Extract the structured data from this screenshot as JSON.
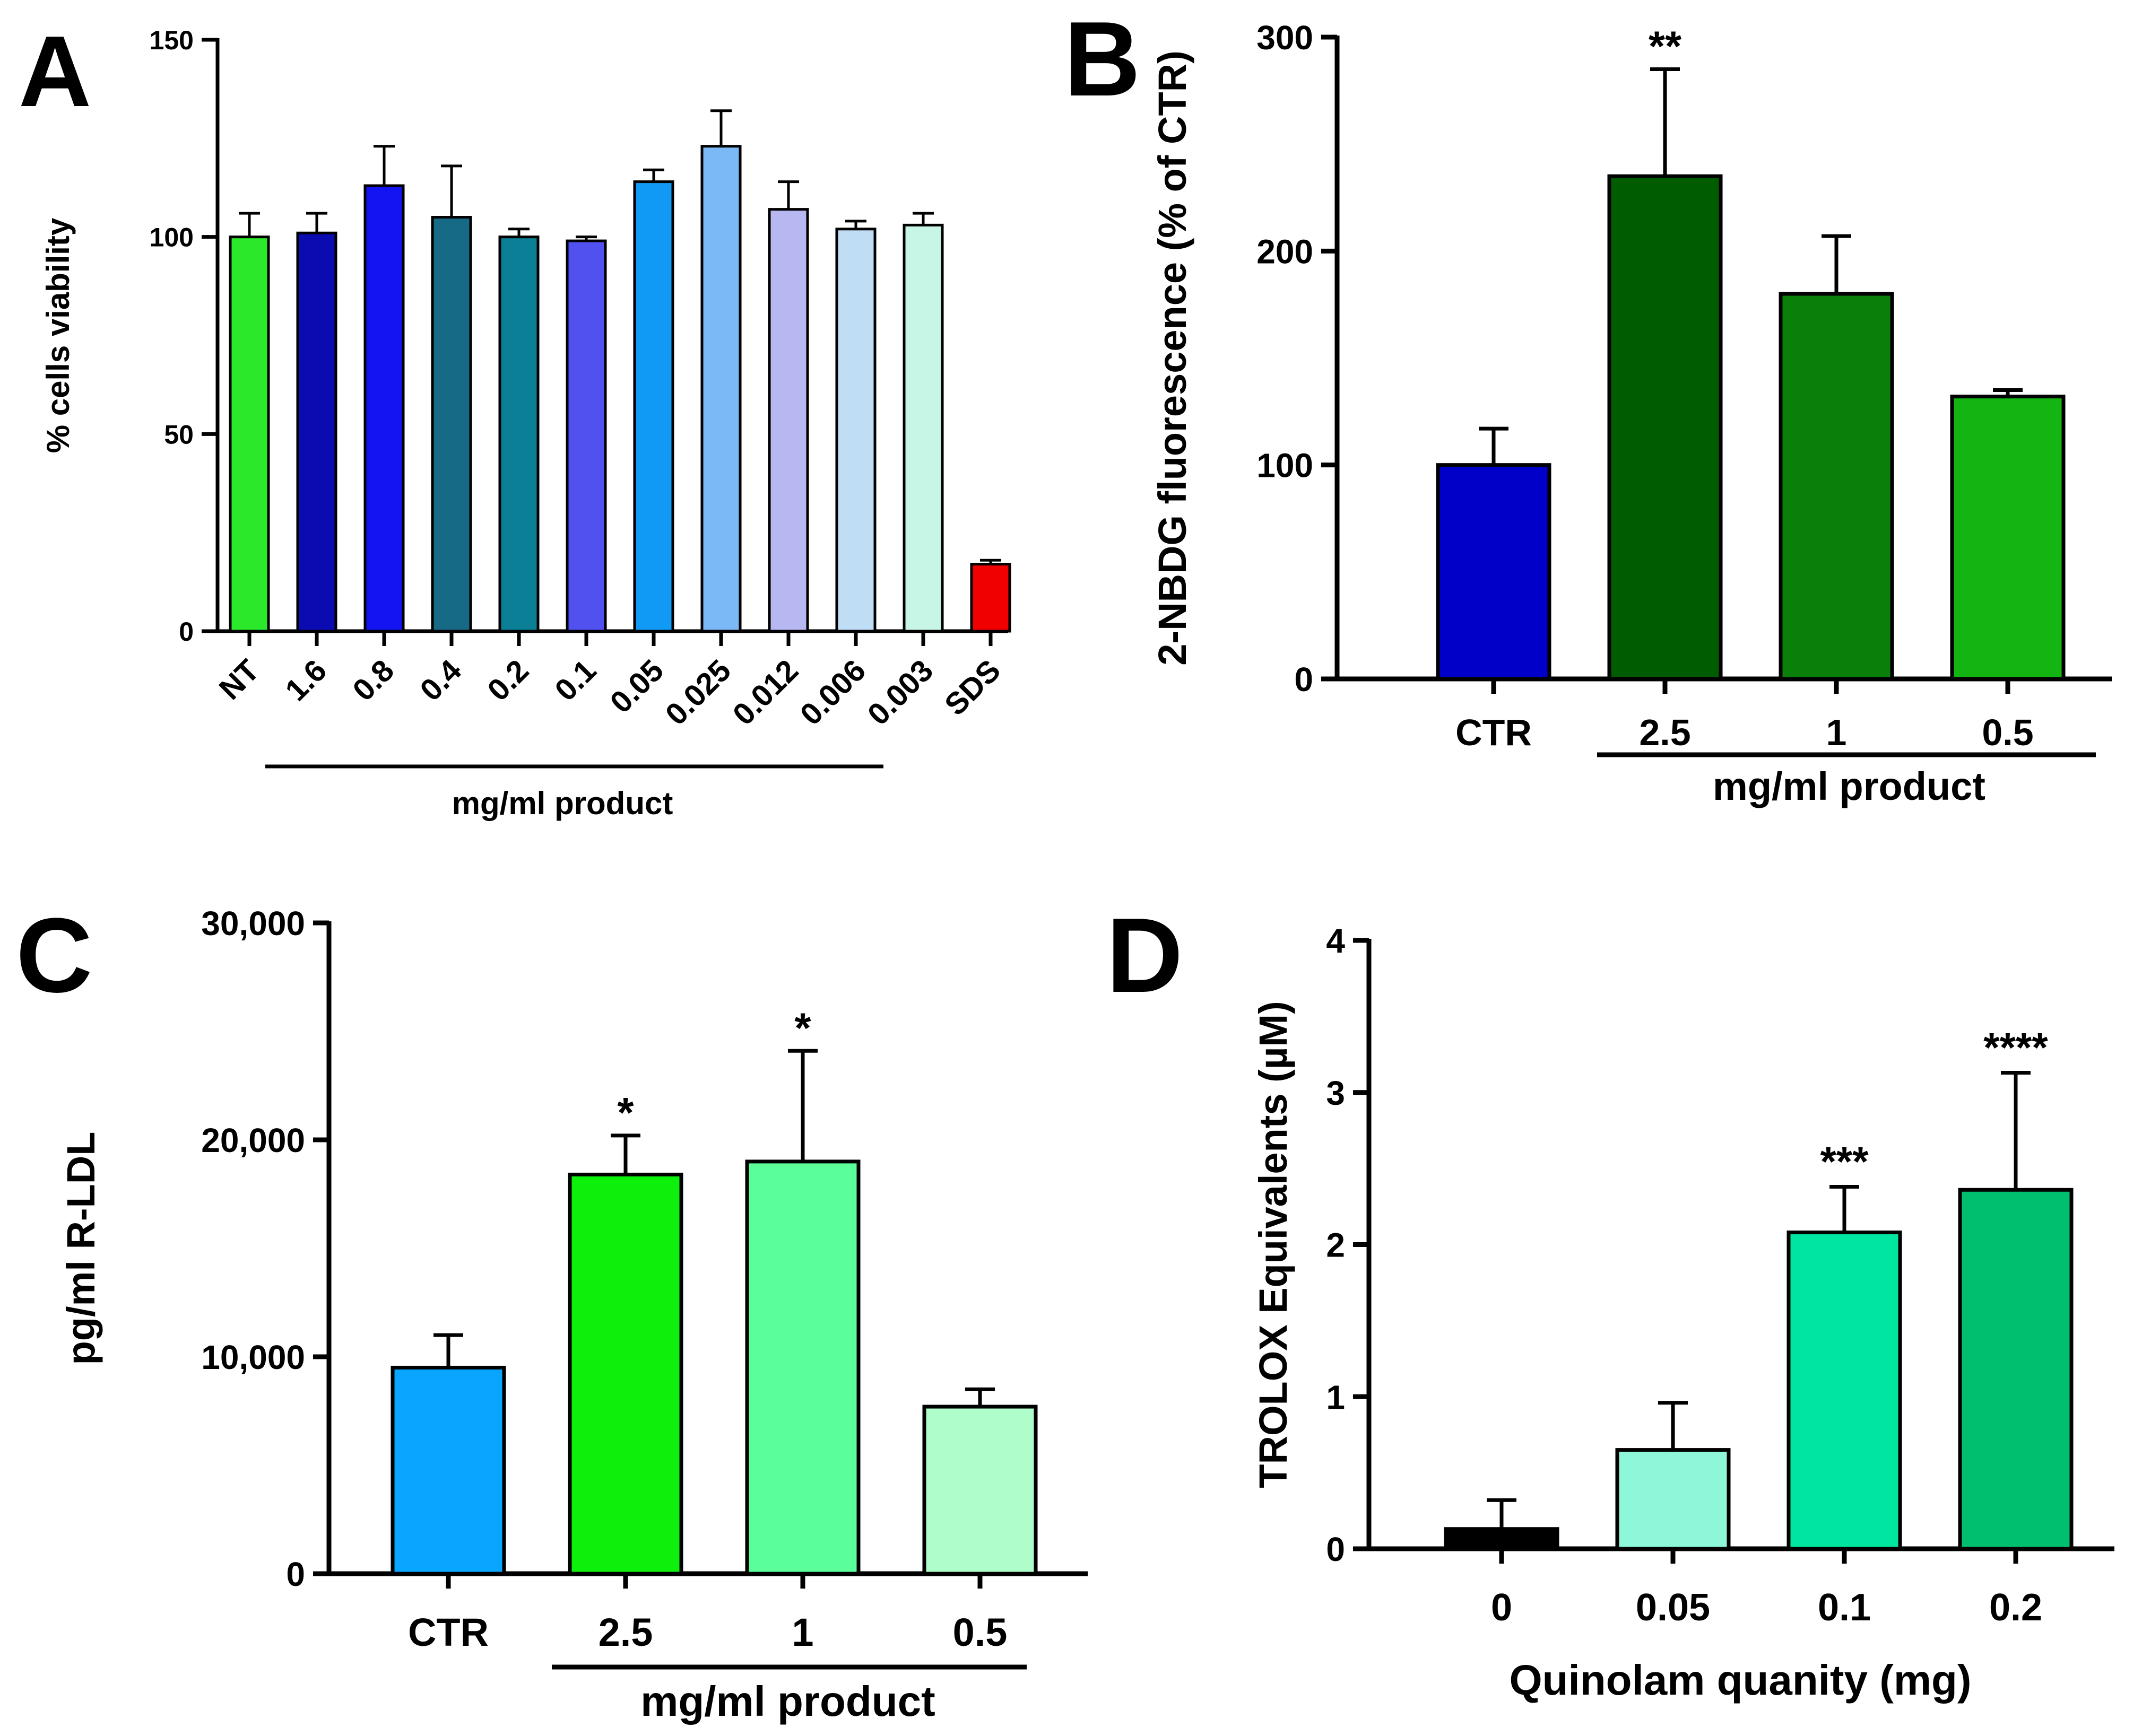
{
  "chart_data": [
    {
      "panel_label": "A",
      "type": "bar",
      "title": "",
      "ylabel": "% cells viability",
      "xlabel": "mg/ml product",
      "ylim": [
        0,
        150
      ],
      "yticks": [
        "0",
        "50",
        "100",
        "150"
      ],
      "categories": [
        "NT",
        "1.6",
        "0.8",
        "0.4",
        "0.2",
        "0.1",
        "0.05",
        "0.025",
        "0.012",
        "0.006",
        "0.003",
        "SDS"
      ],
      "values": [
        100,
        101,
        113,
        105,
        100,
        99,
        114,
        123,
        107,
        102,
        103,
        17
      ],
      "errors": [
        6,
        5,
        10,
        13,
        2,
        1,
        3,
        9,
        7,
        2,
        3,
        1
      ],
      "colors": [
        "#2be82b",
        "#0b0bb2",
        "#1414f2",
        "#176a86",
        "#0a7f96",
        "#5151f0",
        "#109af5",
        "#7ab9f5",
        "#b7b7f2",
        "#c0ddf6",
        "#c7f6e6",
        "#f00000"
      ],
      "annotations": [
        "",
        "",
        "",
        "",
        "",
        "",
        "",
        "",
        "",
        "",
        "",
        ""
      ],
      "bracket_label": "mg/ml product"
    },
    {
      "panel_label": "B",
      "type": "bar",
      "title": "",
      "ylabel": "2-NBDG fluorescence (% of CTR)",
      "xlabel": "mg/ml product",
      "ylim": [
        0,
        300
      ],
      "yticks": [
        "0",
        "100",
        "200",
        "300"
      ],
      "categories": [
        "CTR",
        "2.5",
        "1",
        "0.5"
      ],
      "values": [
        100,
        235,
        180,
        132
      ],
      "errors": [
        17,
        50,
        27,
        3
      ],
      "colors": [
        "#0000c8",
        "#005c00",
        "#0a800a",
        "#12b512"
      ],
      "annotations": [
        "",
        "**",
        "",
        ""
      ],
      "bracket_label": "mg/ml product"
    },
    {
      "panel_label": "C",
      "type": "bar",
      "title": "",
      "ylabel": "pg/ml R-LDL",
      "xlabel": "mg/ml product",
      "ylim": [
        0,
        30000
      ],
      "yticks": [
        "0",
        "10,000",
        "20,000",
        "30,000"
      ],
      "categories": [
        "CTR",
        "2.5",
        "1",
        "0.5"
      ],
      "values": [
        9500,
        18400,
        19000,
        7700
      ],
      "errors": [
        1500,
        1800,
        5100,
        800
      ],
      "colors": [
        "#08a6ff",
        "#0cf00c",
        "#5aff9a",
        "#aefdca"
      ],
      "annotations": [
        "",
        "*",
        "*",
        ""
      ],
      "bracket_label": "mg/ml product"
    },
    {
      "panel_label": "D",
      "type": "bar",
      "title": "",
      "ylabel": "TROLOX Equivalents (µM)",
      "xlabel": "Quinolam quanity (mg)",
      "ylim": [
        0,
        4
      ],
      "yticks": [
        "0",
        "1",
        "2",
        "3",
        "4"
      ],
      "categories": [
        "0",
        "0.05",
        "0.1",
        "0.2"
      ],
      "values": [
        0.13,
        0.65,
        2.08,
        2.36
      ],
      "errors": [
        0.19,
        0.31,
        0.3,
        0.77
      ],
      "colors": [
        "#000000",
        "#8ff7d9",
        "#00e6a0",
        "#00c070"
      ],
      "annotations": [
        "",
        "",
        "***",
        "****"
      ],
      "bracket_label": ""
    }
  ]
}
